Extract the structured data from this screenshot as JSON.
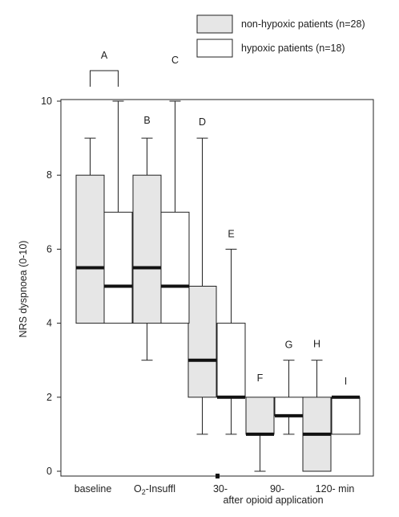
{
  "chart_data": {
    "type": "boxplot",
    "ylabel": "NRS dyspnoea (0-10)",
    "ylim": [
      0,
      10
    ],
    "yticks": [
      0,
      2,
      4,
      6,
      8,
      10
    ],
    "categories": [
      "baseline",
      "O2-Insuffl",
      "30-",
      "90-",
      "120- min"
    ],
    "category_display": {
      "baseline": "baseline",
      "O2-Insuffl": {
        "pre": "O",
        "sub": "2",
        "post": "-Insuffl"
      },
      "30-": "30-",
      "90-": "90-",
      "120- min": "120- min"
    },
    "xlabel_secondary": "after opioid application",
    "legend": {
      "position": "top-right",
      "entries": [
        {
          "label": "non-hypoxic patients (n=28)",
          "fill": "#e6e6e6"
        },
        {
          "label": "hypoxic patients (n=18)",
          "fill": "#ffffff"
        }
      ]
    },
    "series": [
      {
        "name": "non-hypoxic patients (n=28)",
        "fill": "#e6e6e6",
        "boxes": [
          {
            "category": "baseline",
            "min": 4,
            "q1": 4,
            "median": 5.5,
            "q3": 8,
            "max": 9
          },
          {
            "category": "O2-Insuffl",
            "min": 3,
            "q1": 4,
            "median": 5.5,
            "q3": 8,
            "max": 9
          },
          {
            "category": "30-",
            "min": 1,
            "q1": 2,
            "median": 3,
            "q3": 5,
            "max": 9
          },
          {
            "category": "90-",
            "min": 0,
            "q1": 1,
            "median": 1,
            "q3": 2,
            "max": 2
          },
          {
            "category": "120- min",
            "min": 0,
            "q1": 0,
            "median": 1,
            "q3": 2,
            "max": 3
          }
        ]
      },
      {
        "name": "hypoxic patients (n=18)",
        "fill": "#ffffff",
        "boxes": [
          {
            "category": "baseline",
            "min": 4,
            "q1": 4,
            "median": 5,
            "q3": 7,
            "max": 10
          },
          {
            "category": "O2-Insuffl",
            "min": 4,
            "q1": 4,
            "median": 5,
            "q3": 7,
            "max": 10
          },
          {
            "category": "30-",
            "min": 1,
            "q1": 2,
            "median": 2,
            "q3": 4,
            "max": 6
          },
          {
            "category": "90-",
            "min": 1,
            "q1": 1.5,
            "median": 1.5,
            "q3": 2,
            "max": 3
          },
          {
            "category": "120- min",
            "min": 1,
            "q1": 1,
            "median": 2,
            "q3": 2,
            "max": 2
          }
        ]
      }
    ],
    "annotations": [
      {
        "label": "A",
        "series_index": 0,
        "category_index": 0,
        "bracket": true
      },
      {
        "label": "B",
        "series_index": 0,
        "category_index": 1
      },
      {
        "label": "C",
        "series_index": 1,
        "category_index": 1
      },
      {
        "label": "D",
        "series_index": 0,
        "category_index": 2
      },
      {
        "label": "E",
        "series_index": 1,
        "category_index": 2
      },
      {
        "label": "F",
        "series_index": 0,
        "category_index": 3
      },
      {
        "label": "G",
        "series_index": 1,
        "category_index": 3
      },
      {
        "label": "H",
        "series_index": 0,
        "category_index": 4
      },
      {
        "label": "I",
        "series_index": 1,
        "category_index": 4
      }
    ]
  }
}
